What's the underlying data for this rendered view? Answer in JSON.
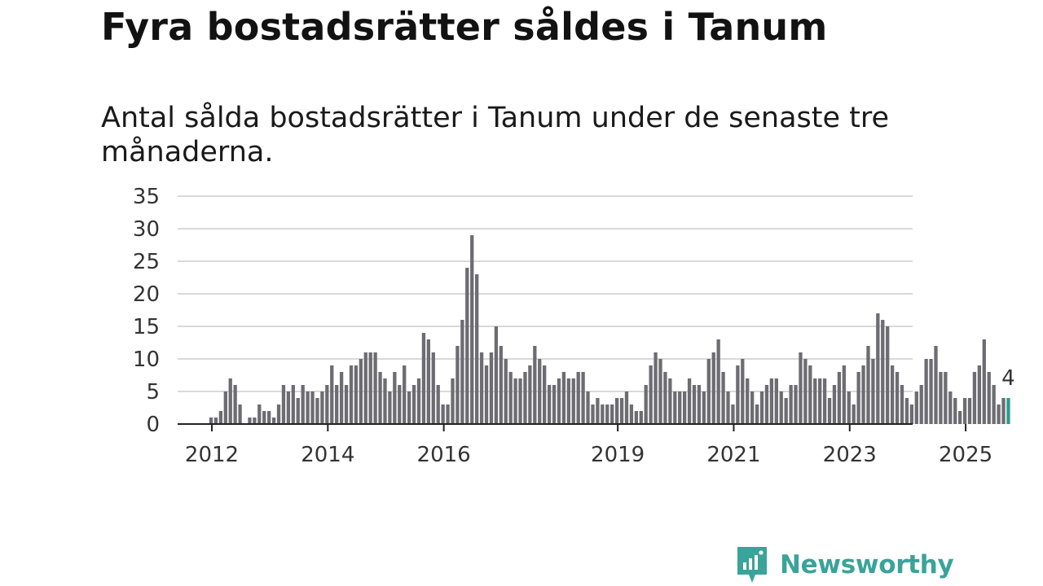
{
  "title": "Fyra bostadsrätter såldes i Tanum",
  "subtitle": "Antal sålda bostadsrätter i Tanum under de senaste tre månaderna.",
  "brand": {
    "name": "Newsworthy",
    "color": "#3aa39a"
  },
  "chart_data": {
    "type": "bar",
    "title": "Fyra bostadsrätter såldes i Tanum",
    "subtitle": "Antal sålda bostadsrätter i Tanum under de senaste tre månaderna.",
    "xlabel": "",
    "ylabel": "",
    "ylim": [
      0,
      35
    ],
    "yticks": [
      0,
      5,
      10,
      15,
      20,
      25,
      30,
      35
    ],
    "grid": true,
    "start": "2012-01",
    "xticks": [
      {
        "label": "2012",
        "index": 0
      },
      {
        "label": "2014",
        "index": 24
      },
      {
        "label": "2016",
        "index": 48
      },
      {
        "label": "2019",
        "index": 84
      },
      {
        "label": "2021",
        "index": 108
      },
      {
        "label": "2023",
        "index": 132
      },
      {
        "label": "2025",
        "index": 156
      }
    ],
    "bar_color": "#6d6c72",
    "highlight_color": "#2a9d8f",
    "highlight_label": "4",
    "values": [
      1,
      1,
      2,
      5,
      7,
      6,
      3,
      0,
      1,
      1,
      3,
      2,
      2,
      1,
      3,
      6,
      5,
      6,
      4,
      6,
      5,
      5,
      4,
      5,
      6,
      9,
      6,
      8,
      6,
      9,
      9,
      10,
      11,
      11,
      11,
      8,
      7,
      5,
      8,
      6,
      9,
      5,
      6,
      7,
      14,
      13,
      11,
      6,
      3,
      3,
      7,
      12,
      16,
      24,
      29,
      23,
      11,
      9,
      11,
      15,
      12,
      10,
      8,
      7,
      7,
      8,
      9,
      12,
      10,
      9,
      6,
      6,
      7,
      8,
      7,
      7,
      8,
      8,
      5,
      3,
      4,
      3,
      3,
      3,
      4,
      4,
      5,
      3,
      2,
      2,
      6,
      9,
      11,
      10,
      8,
      7,
      5,
      5,
      5,
      7,
      6,
      6,
      5,
      10,
      11,
      13,
      8,
      5,
      3,
      9,
      10,
      7,
      5,
      3,
      5,
      6,
      7,
      7,
      5,
      4,
      6,
      6,
      11,
      10,
      9,
      7,
      7,
      7,
      4,
      6,
      8,
      9,
      5,
      3,
      8,
      9,
      12,
      10,
      17,
      16,
      15,
      9,
      8,
      6,
      4,
      3,
      5,
      6,
      10,
      10,
      12,
      8,
      8,
      5,
      4,
      2,
      4,
      4,
      8,
      9,
      13,
      8,
      6,
      3,
      4,
      4
    ]
  }
}
